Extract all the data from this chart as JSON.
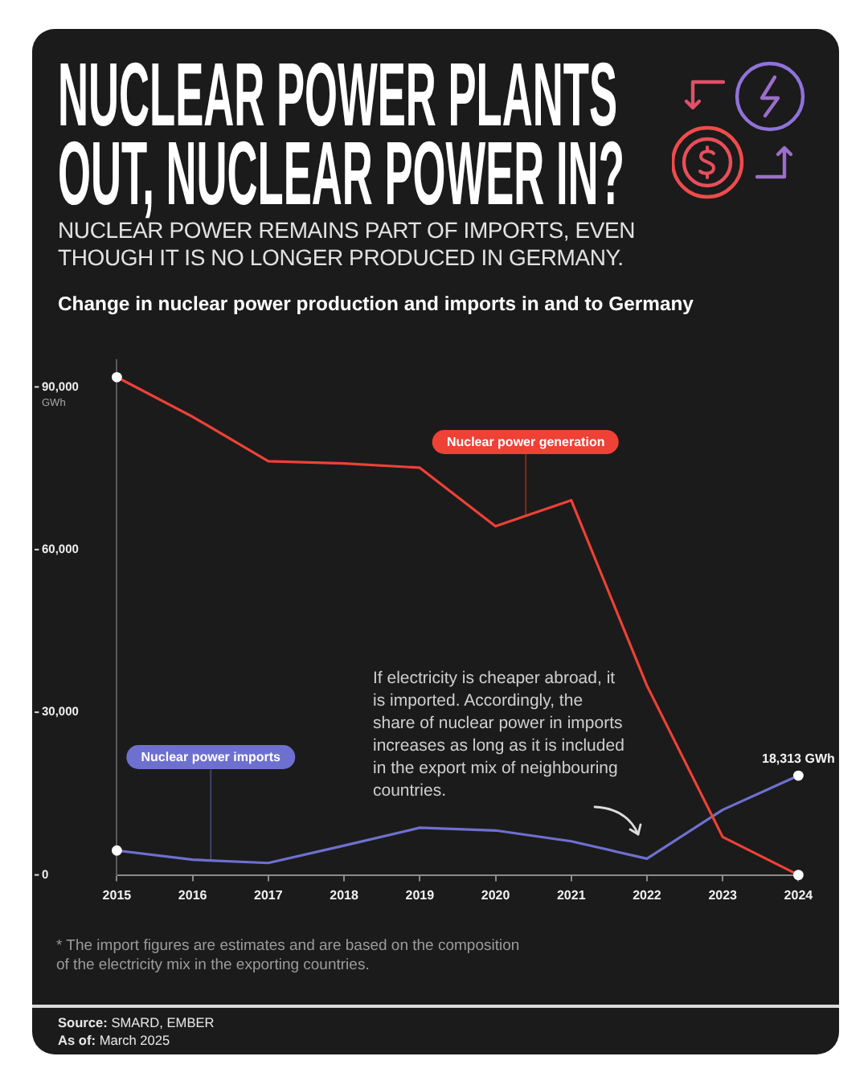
{
  "chart_data": {
    "type": "line",
    "title": "NUCLEAR POWER PLANTS OUT, NUCLEAR POWER IN?",
    "subtitle": "NUCLEAR POWER REMAINS PART OF IMPORTS, EVEN THOUGH IT IS NO LONGER PRODUCED IN GERMANY.",
    "ylabel": "GWh",
    "categories": [
      "2015",
      "2016",
      "2017",
      "2018",
      "2019",
      "2020",
      "2021",
      "2022",
      "2023",
      "2024"
    ],
    "series": [
      {
        "name": "Nuclear power generation",
        "color": "#ef4136",
        "values": [
          91800,
          84500,
          76300,
          75900,
          75100,
          64300,
          69100,
          34900,
          7000,
          0
        ]
      },
      {
        "name": "Nuclear power imports",
        "color": "#6e70d0",
        "values": [
          4500,
          2800,
          2200,
          5400,
          8700,
          8200,
          6200,
          3000,
          12000,
          18313
        ],
        "value_labels": [
          null,
          null,
          null,
          null,
          null,
          null,
          null,
          null,
          null,
          "18,313 GWh"
        ]
      }
    ],
    "ylim": [
      0,
      95000
    ],
    "yticks": [
      0,
      {
        "value": 30000,
        "label": "30,000"
      },
      {
        "value": 60000,
        "label": "60,000"
      },
      {
        "value": 90000,
        "label": "90,000"
      }
    ],
    "line_style": "solid",
    "annotations": [
      "Change in nuclear power production and imports in and to Germany",
      "If electricity is cheaper abroad, it is imported. Accordingly, the share of nuclear power in imports increases as long as it is included in the export mix of neighbouring countries.",
      "* The import figures are estimates and are based on the composition of the electricity mix in the exporting countries.",
      "Source: SMARD, EMBER",
      "As of: March 2025"
    ]
  }
}
